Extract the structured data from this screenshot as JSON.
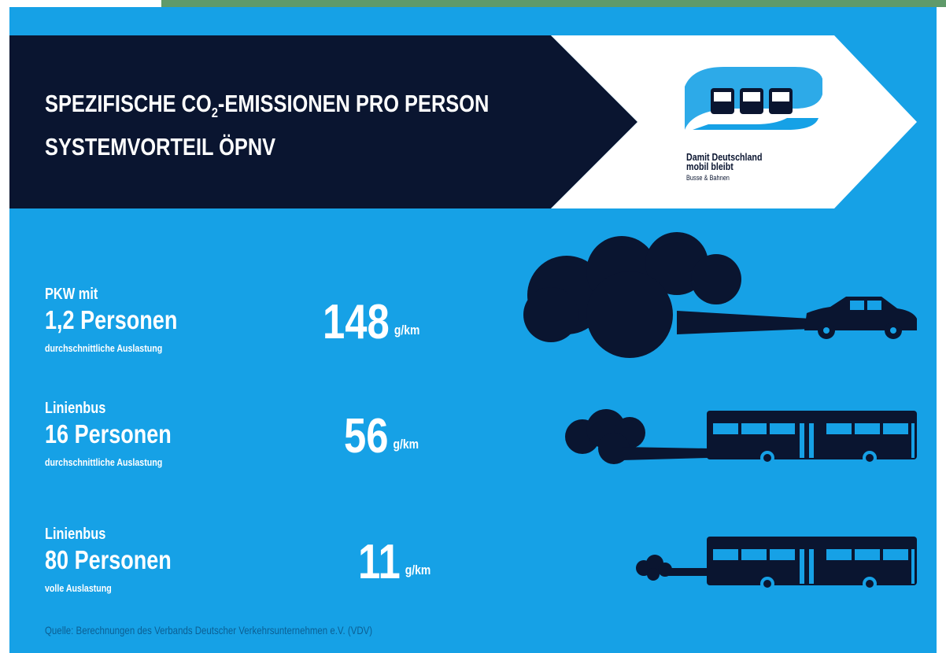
{
  "header": {
    "title_a": "SPEZIFISCHE CO",
    "title_sub": "2",
    "title_b": "-EMISSIONEN PRO PERSON",
    "title_line2": "SYSTEMVORTEIL ÖPNV"
  },
  "logo": {
    "line1": "Damit Deutschland",
    "line2": "mobil bleibt",
    "line3": "Busse & Bahnen"
  },
  "rows": [
    {
      "vehicle": "PKW mit",
      "persons": "1,2 Personen",
      "note": "durchschnittliche Auslastung",
      "value": 148,
      "unit": "g/km"
    },
    {
      "vehicle": "Linienbus",
      "persons": "16 Personen",
      "note": "durchschnittliche Auslastung",
      "value": 56,
      "unit": "g/km"
    },
    {
      "vehicle": "Linienbus",
      "persons": "80 Personen",
      "note": "volle Auslastung",
      "value": 11,
      "unit": "g/km"
    }
  ],
  "source": "Quelle: Berechnungen des Verbands Deutscher Verkehrsunternehmen e.V. (VDV)"
}
